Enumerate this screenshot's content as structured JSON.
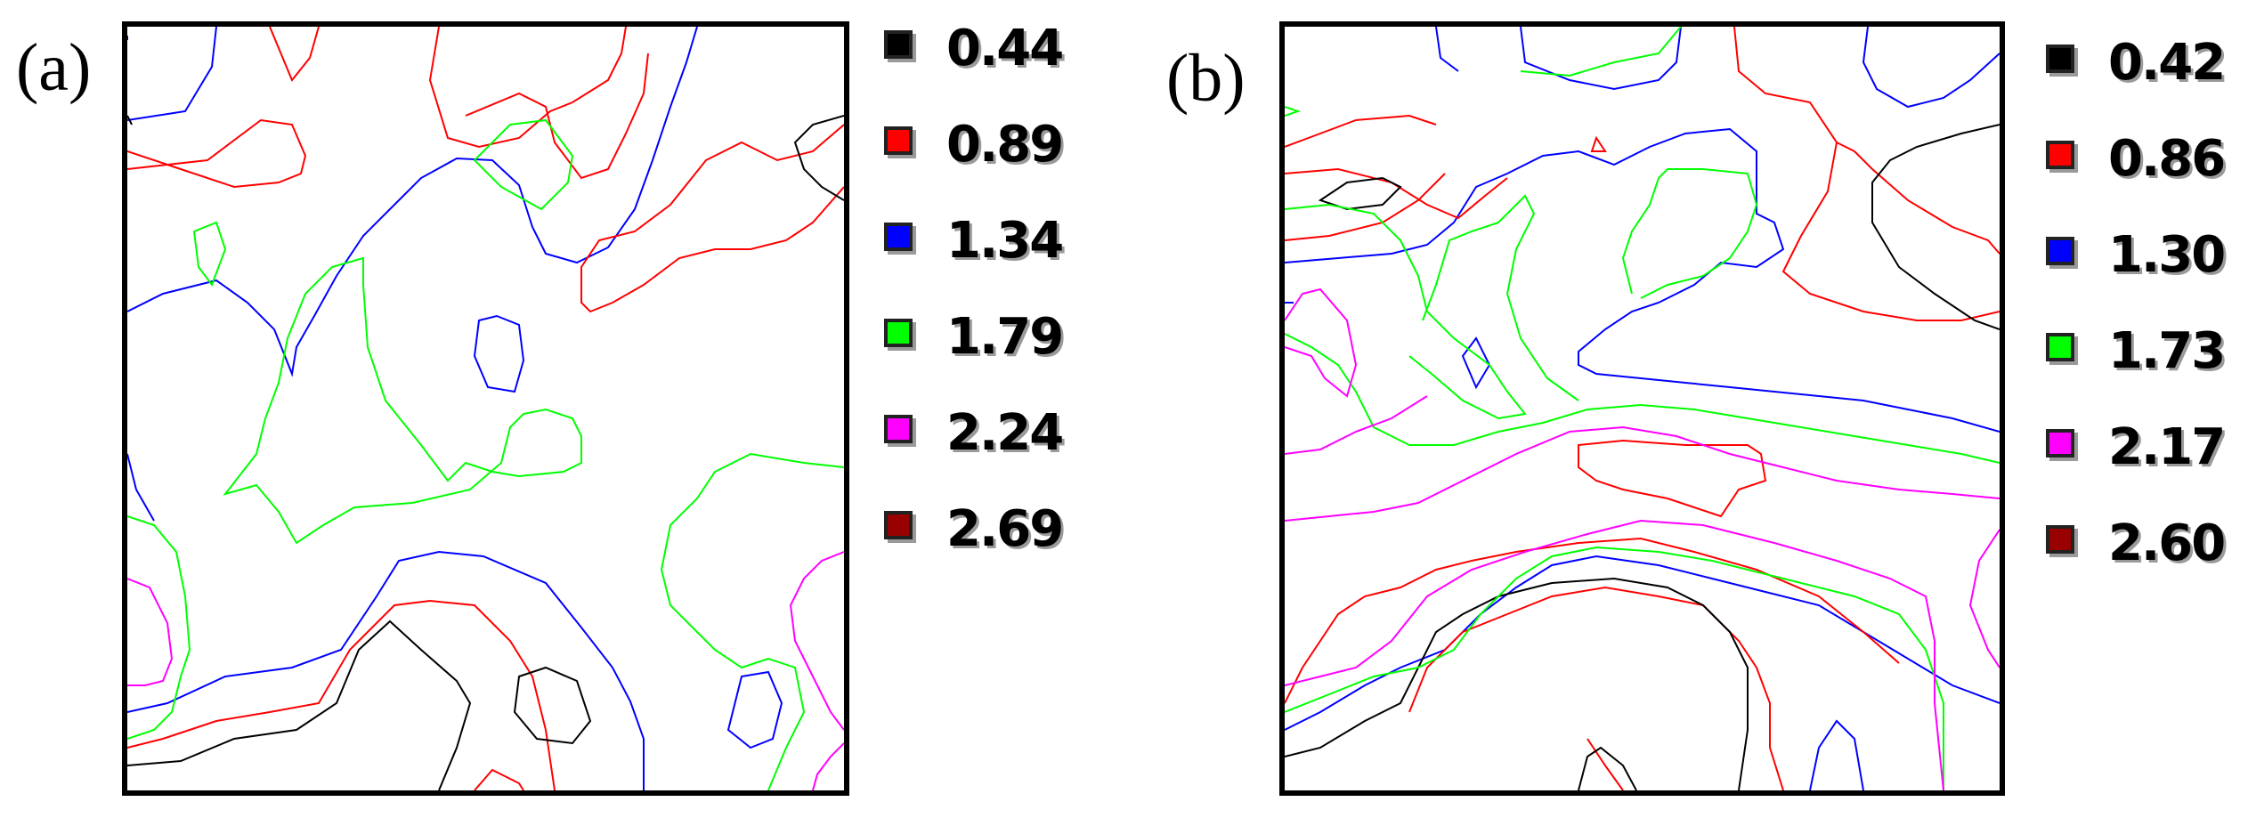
{
  "chart_data": [
    {
      "type": "contour",
      "panel_label": "(a)",
      "levels": [
        {
          "value": "0.44",
          "color": "#000000"
        },
        {
          "value": "0.89",
          "color": "#ff0000"
        },
        {
          "value": "1.34",
          "color": "#0000ff"
        },
        {
          "value": "1.79",
          "color": "#00ff00"
        },
        {
          "value": "2.24",
          "color": "#ff00ff"
        },
        {
          "value": "2.69",
          "color": "#990000"
        }
      ],
      "contour_lines_drawn_in": [
        "black",
        "red",
        "blue",
        "green",
        "magenta"
      ],
      "legend_position": "right",
      "axes": "none",
      "grid": false
    },
    {
      "type": "contour",
      "panel_label": "(b)",
      "levels": [
        {
          "value": "0.42",
          "color": "#000000"
        },
        {
          "value": "0.86",
          "color": "#ff0000"
        },
        {
          "value": "1.30",
          "color": "#0000ff"
        },
        {
          "value": "1.73",
          "color": "#00ff00"
        },
        {
          "value": "2.17",
          "color": "#ff00ff"
        },
        {
          "value": "2.60",
          "color": "#990000"
        }
      ],
      "contour_lines_drawn_in": [
        "black",
        "red",
        "blue",
        "green",
        "magenta"
      ],
      "legend_position": "right",
      "axes": "none",
      "grid": false
    }
  ]
}
